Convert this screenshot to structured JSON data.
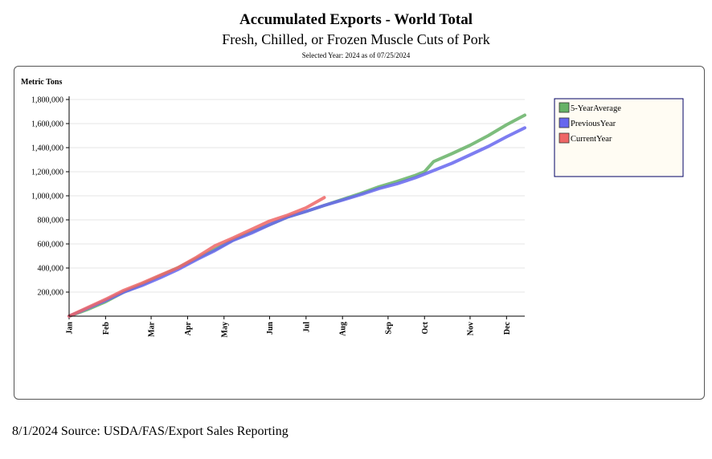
{
  "header": {
    "title": "Accumulated Exports - World Total",
    "subtitle": "Fresh, Chilled, or Frozen Muscle Cuts of Pork",
    "selected_year": "Selected Year: 2024 as of 07/25/2024"
  },
  "footer": {
    "source": "8/1/2024 Source: USDA/FAS/Export Sales Reporting"
  },
  "chart_data": {
    "type": "line",
    "ylabel": "Metric Tons",
    "ylim": [
      0,
      1800000
    ],
    "yticks": [
      200000,
      400000,
      600000,
      800000,
      1000000,
      1200000,
      1400000,
      1600000,
      1800000
    ],
    "ytick_labels": [
      "200,000",
      "400,000",
      "600,000",
      "800,000",
      "1,000,000",
      "1,200,000",
      "1,400,000",
      "1,600,000",
      "1,800,000"
    ],
    "xlim": [
      0,
      12.5
    ],
    "xticks": [
      0,
      1,
      2.25,
      3.25,
      4.25,
      5.5,
      6.5,
      7.5,
      8.75,
      9.75,
      11,
      12
    ],
    "xtick_labels": [
      "Jan",
      "Feb",
      "Mar",
      "Apr",
      "May",
      "Jun",
      "Jul",
      "Aug",
      "Sep",
      "Oct",
      "Nov",
      "Dec"
    ],
    "grid": "horizontal",
    "legend_position": "top-right",
    "series": [
      {
        "name": "5-YearAverage",
        "color": "#66b266",
        "x": [
          0,
          0.5,
          1,
          1.5,
          2,
          2.5,
          3,
          3.5,
          4,
          4.5,
          5,
          5.5,
          6,
          6.5,
          7,
          7.5,
          8,
          8.5,
          9,
          9.5,
          9.75,
          10,
          10.5,
          11,
          11.5,
          12,
          12.5
        ],
        "values": [
          0,
          55000,
          120000,
          200000,
          265000,
          335000,
          405000,
          480000,
          555000,
          635000,
          700000,
          760000,
          825000,
          870000,
          920000,
          970000,
          1020000,
          1075000,
          1120000,
          1170000,
          1200000,
          1285000,
          1350000,
          1420000,
          1500000,
          1590000,
          1670000
        ]
      },
      {
        "name": "PreviousYear",
        "color": "#6666ee",
        "x": [
          0,
          0.5,
          1,
          1.5,
          2,
          2.5,
          3,
          3.5,
          4,
          4.5,
          5,
          5.5,
          6,
          6.5,
          7,
          7.5,
          8,
          8.5,
          9,
          9.5,
          9.75,
          10,
          10.5,
          11,
          11.5,
          12,
          12.5
        ],
        "values": [
          0,
          65000,
          130000,
          200000,
          255000,
          320000,
          390000,
          470000,
          545000,
          630000,
          690000,
          760000,
          825000,
          870000,
          920000,
          965000,
          1010000,
          1060000,
          1100000,
          1150000,
          1180000,
          1210000,
          1270000,
          1340000,
          1410000,
          1490000,
          1565000
        ]
      },
      {
        "name": "CurrentYear",
        "color": "#ee6666",
        "x": [
          0,
          0.5,
          1,
          1.5,
          2,
          2.5,
          3,
          3.5,
          4,
          4.5,
          5,
          5.5,
          6,
          6.5,
          7
        ],
        "values": [
          0,
          70000,
          140000,
          215000,
          275000,
          340000,
          405000,
          490000,
          585000,
          650000,
          720000,
          790000,
          840000,
          900000,
          985000
        ]
      }
    ]
  }
}
